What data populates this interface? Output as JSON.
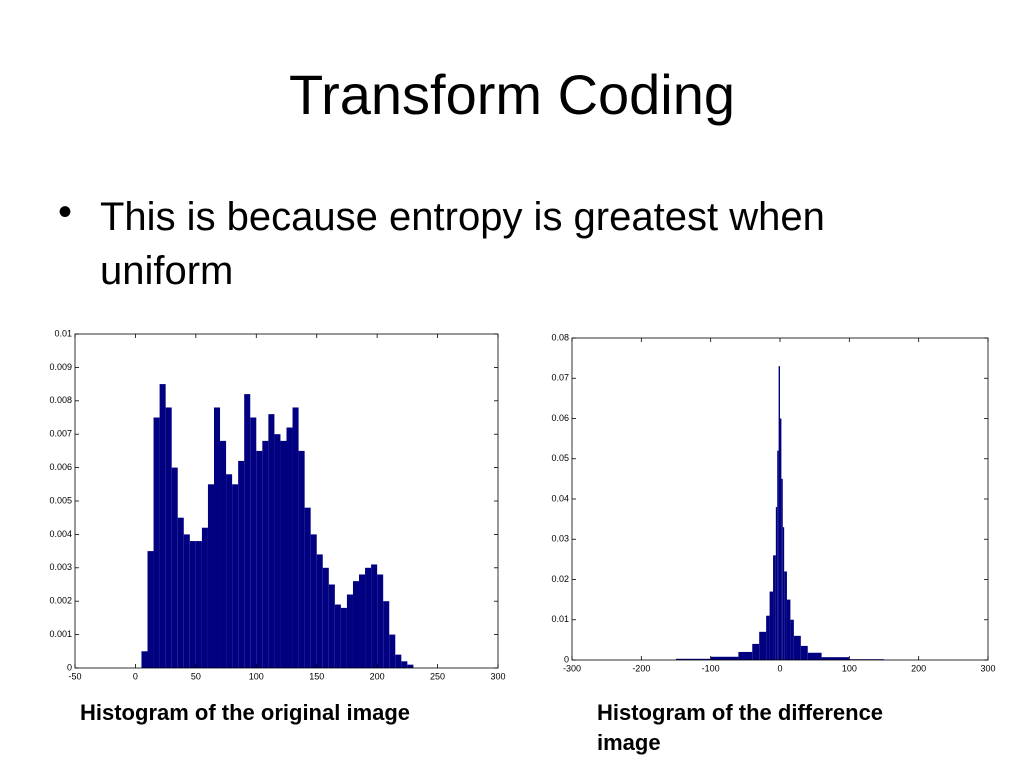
{
  "title": "Transform Coding",
  "bullets": [
    "This is because entropy is greatest when uniform"
  ],
  "chart_data": [
    {
      "type": "histogram",
      "title": "Histogram of the original image",
      "color": "#000080",
      "bins": [
        0,
        5,
        10,
        15,
        20,
        25,
        30,
        35,
        40,
        45,
        50,
        55,
        60,
        65,
        70,
        75,
        80,
        85,
        90,
        95,
        100,
        105,
        110,
        115,
        120,
        125,
        130,
        135,
        140,
        145,
        150,
        155,
        160,
        165,
        170,
        175,
        180,
        185,
        190,
        195,
        200,
        205,
        210,
        215,
        220,
        225,
        230,
        235
      ],
      "values": [
        0,
        0.0005,
        0.0035,
        0.0075,
        0.0085,
        0.0078,
        0.006,
        0.0045,
        0.004,
        0.0038,
        0.0038,
        0.0042,
        0.0055,
        0.0078,
        0.0068,
        0.0058,
        0.0055,
        0.0062,
        0.0082,
        0.0075,
        0.0065,
        0.0068,
        0.0076,
        0.007,
        0.0068,
        0.0072,
        0.0078,
        0.0065,
        0.0048,
        0.004,
        0.0034,
        0.003,
        0.0025,
        0.0019,
        0.0018,
        0.0022,
        0.0026,
        0.0028,
        0.003,
        0.0031,
        0.0028,
        0.002,
        0.001,
        0.0004,
        0.0002,
        0.0001,
        0
      ],
      "xlim": [
        -50,
        300
      ],
      "xticks": [
        -50,
        0,
        50,
        100,
        150,
        200,
        250,
        300
      ],
      "ylim": [
        0,
        0.01
      ],
      "yticks": [
        0,
        0.001,
        0.002,
        0.003,
        0.004,
        0.005,
        0.006,
        0.007,
        0.008,
        0.009,
        0.01
      ]
    },
    {
      "type": "histogram",
      "title": "Histogram of the difference image",
      "color": "#000080",
      "bins": [
        -150,
        -100,
        -60,
        -40,
        -30,
        -20,
        -15,
        -10,
        -6,
        -4,
        -2,
        0,
        2,
        4,
        6,
        10,
        15,
        20,
        30,
        40,
        60,
        100,
        150
      ],
      "values": [
        0.0003,
        0.0008,
        0.002,
        0.004,
        0.007,
        0.011,
        0.017,
        0.026,
        0.038,
        0.052,
        0.073,
        0.06,
        0.045,
        0.033,
        0.022,
        0.015,
        0.01,
        0.006,
        0.0035,
        0.0018,
        0.0007,
        0.0002
      ],
      "xlim": [
        -300,
        300
      ],
      "xticks": [
        -300,
        -200,
        -100,
        0,
        100,
        200,
        300
      ],
      "ylim": [
        0,
        0.08
      ],
      "yticks": [
        0,
        0.01,
        0.02,
        0.03,
        0.04,
        0.05,
        0.06,
        0.07,
        0.08
      ]
    }
  ]
}
